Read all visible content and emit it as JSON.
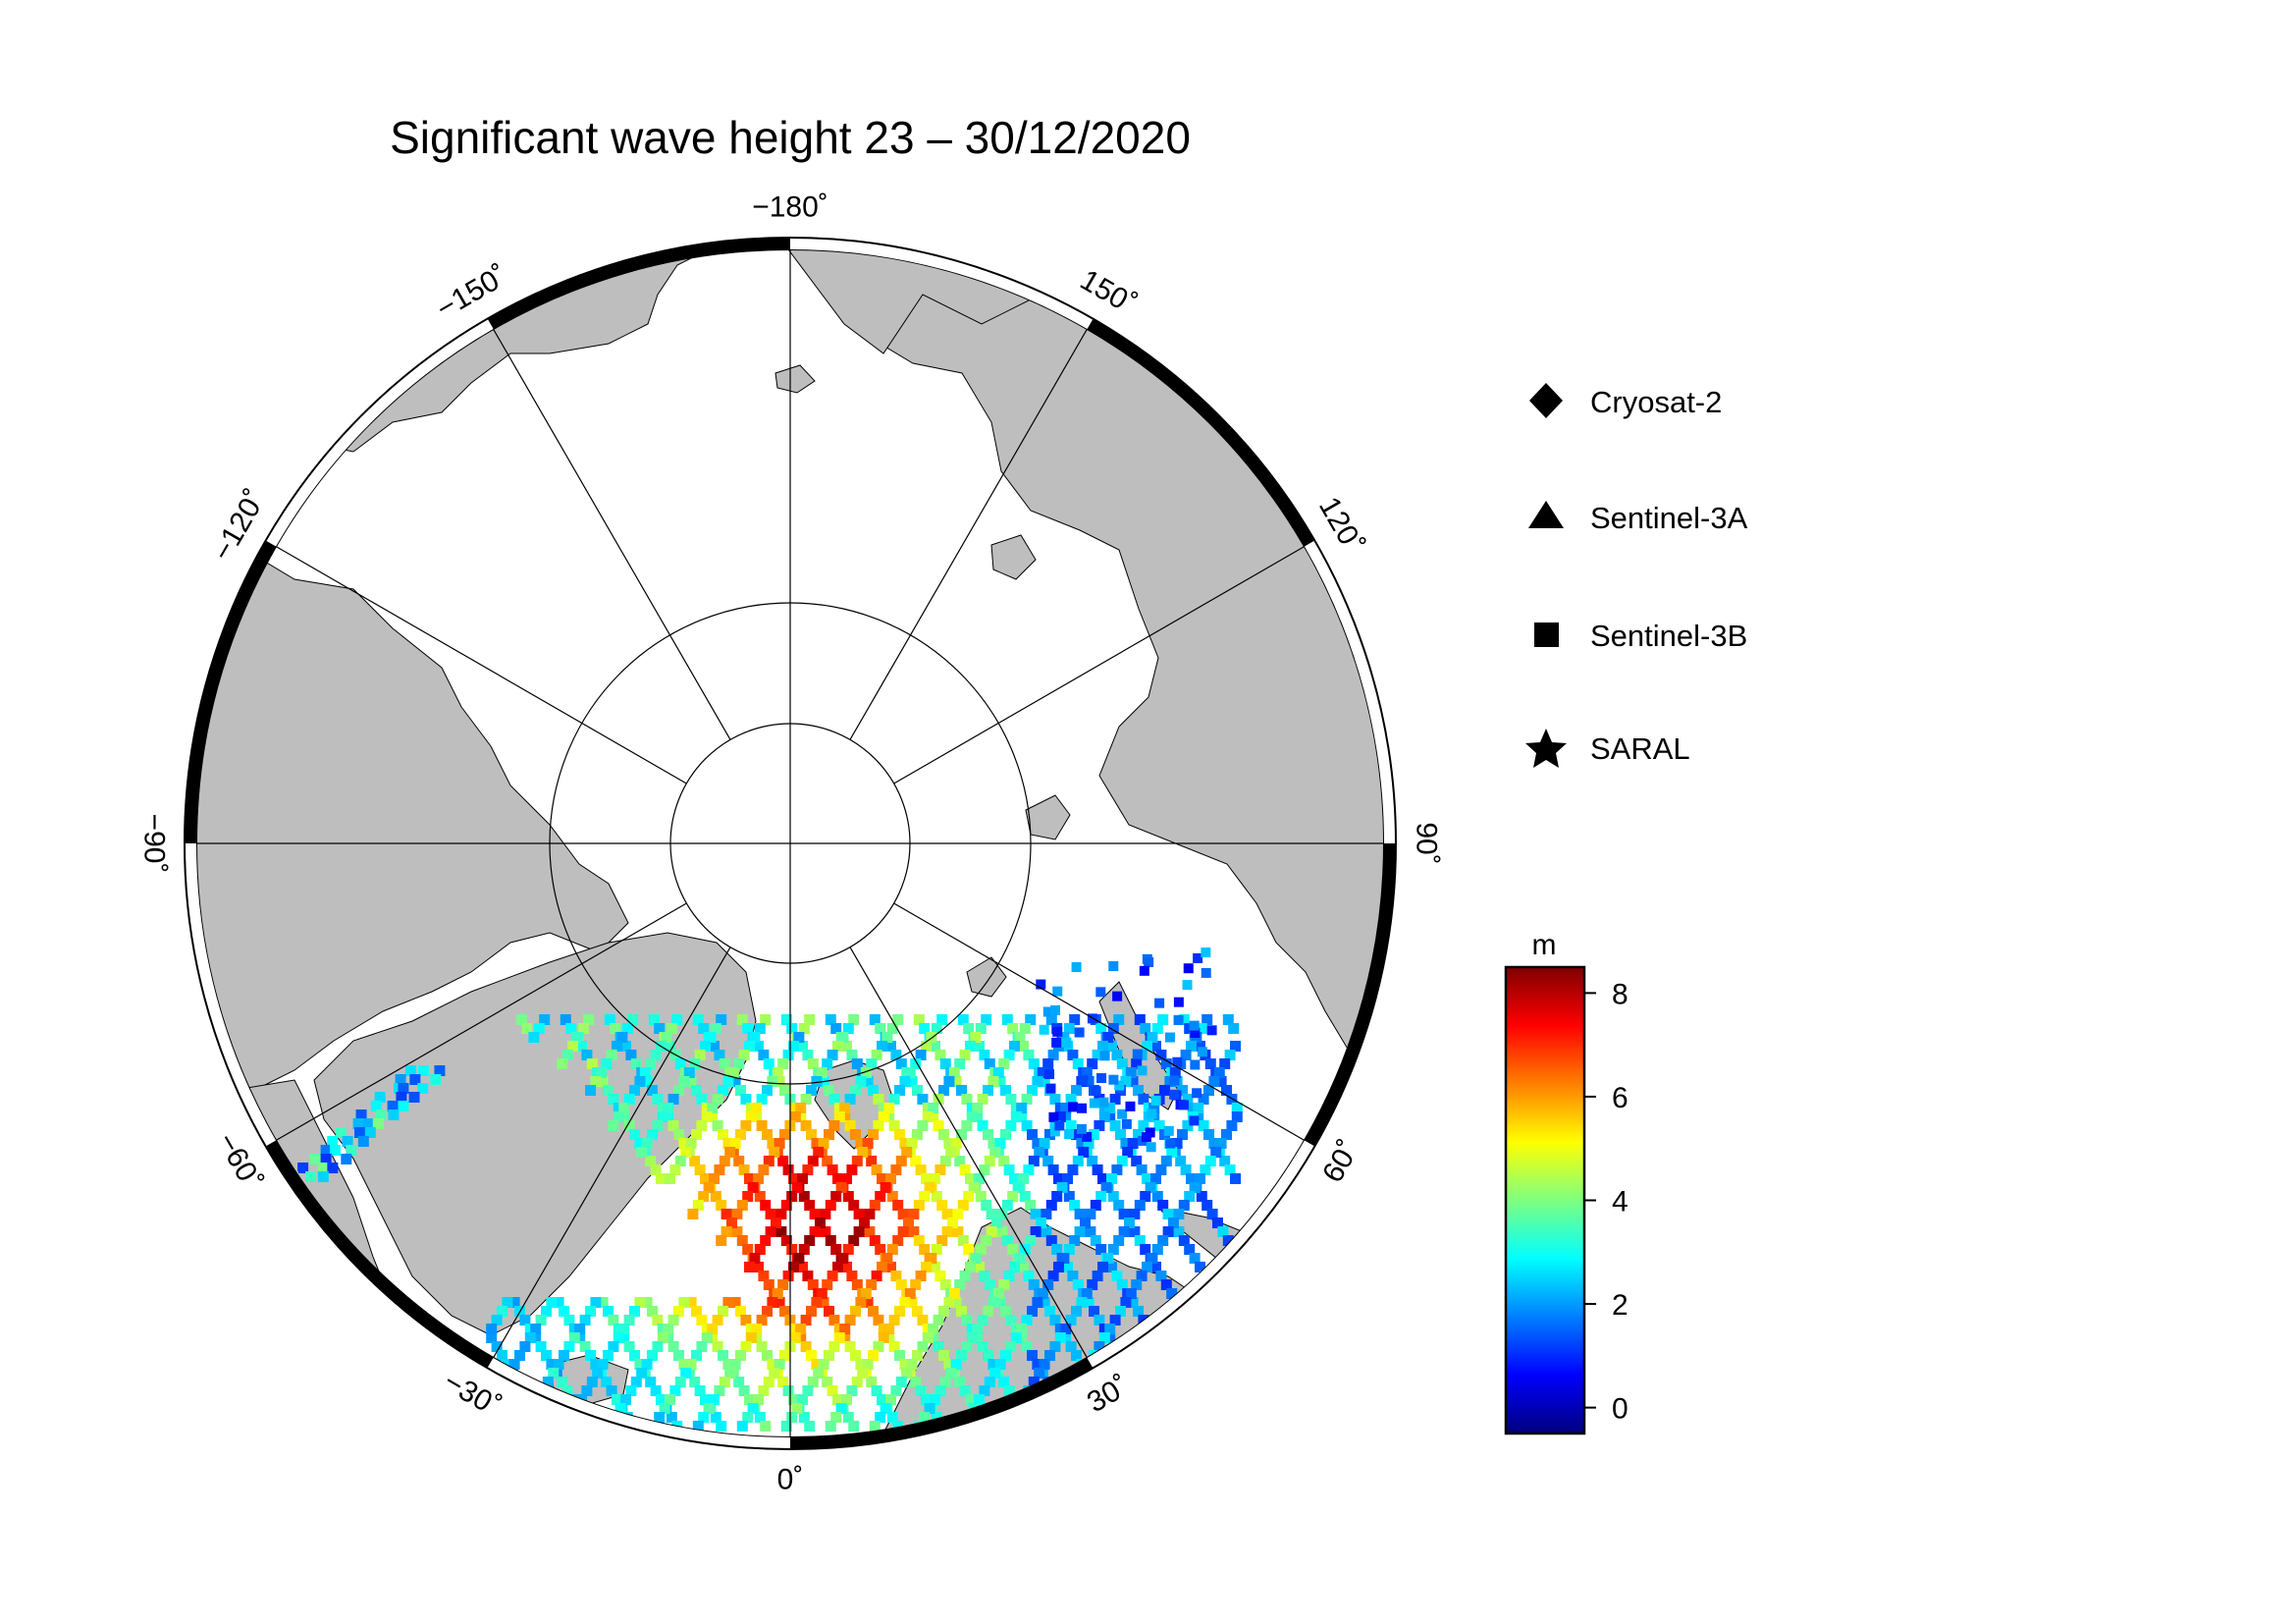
{
  "title": "Significant wave height 23 – 30/12/2020",
  "longitude_labels": [
    {
      "lon": -180,
      "text": "−180˚"
    },
    {
      "lon": -150,
      "text": "−150˚"
    },
    {
      "lon": 150,
      "text": "150˚"
    },
    {
      "lon": -120,
      "text": "−120˚"
    },
    {
      "lon": 120,
      "text": "120˚"
    },
    {
      "lon": -90,
      "text": "−90˚"
    },
    {
      "lon": 90,
      "text": "90˚"
    },
    {
      "lon": -60,
      "text": "−60˚"
    },
    {
      "lon": 60,
      "text": "60˚"
    },
    {
      "lon": -30,
      "text": "−30˚"
    },
    {
      "lon": 30,
      "text": "30˚"
    },
    {
      "lon": 0,
      "text": "0˚"
    }
  ],
  "legend": {
    "items": [
      {
        "symbol": "diamond-icon",
        "label": "Cryosat-2"
      },
      {
        "symbol": "triangle-icon",
        "label": "Sentinel-3A"
      },
      {
        "symbol": "square-icon",
        "label": "Sentinel-3B"
      },
      {
        "symbol": "star-icon",
        "label": "SARAL"
      }
    ]
  },
  "colorbar": {
    "unit": "m",
    "min": -0.5,
    "max": 8.5,
    "ticks": [
      {
        "value": 8,
        "label": "8"
      },
      {
        "value": 6,
        "label": "6"
      },
      {
        "value": 4,
        "label": "4"
      },
      {
        "value": 2,
        "label": "2"
      },
      {
        "value": 0,
        "label": "0"
      }
    ],
    "colormap": [
      "#00007f",
      "#0000ff",
      "#007fff",
      "#00ffff",
      "#7fff7f",
      "#ffff00",
      "#ff7f00",
      "#ff0000",
      "#7f0000"
    ]
  },
  "colors": {
    "land": "#bebebe",
    "ocean": "#ffffff",
    "frame": "#000000"
  }
}
